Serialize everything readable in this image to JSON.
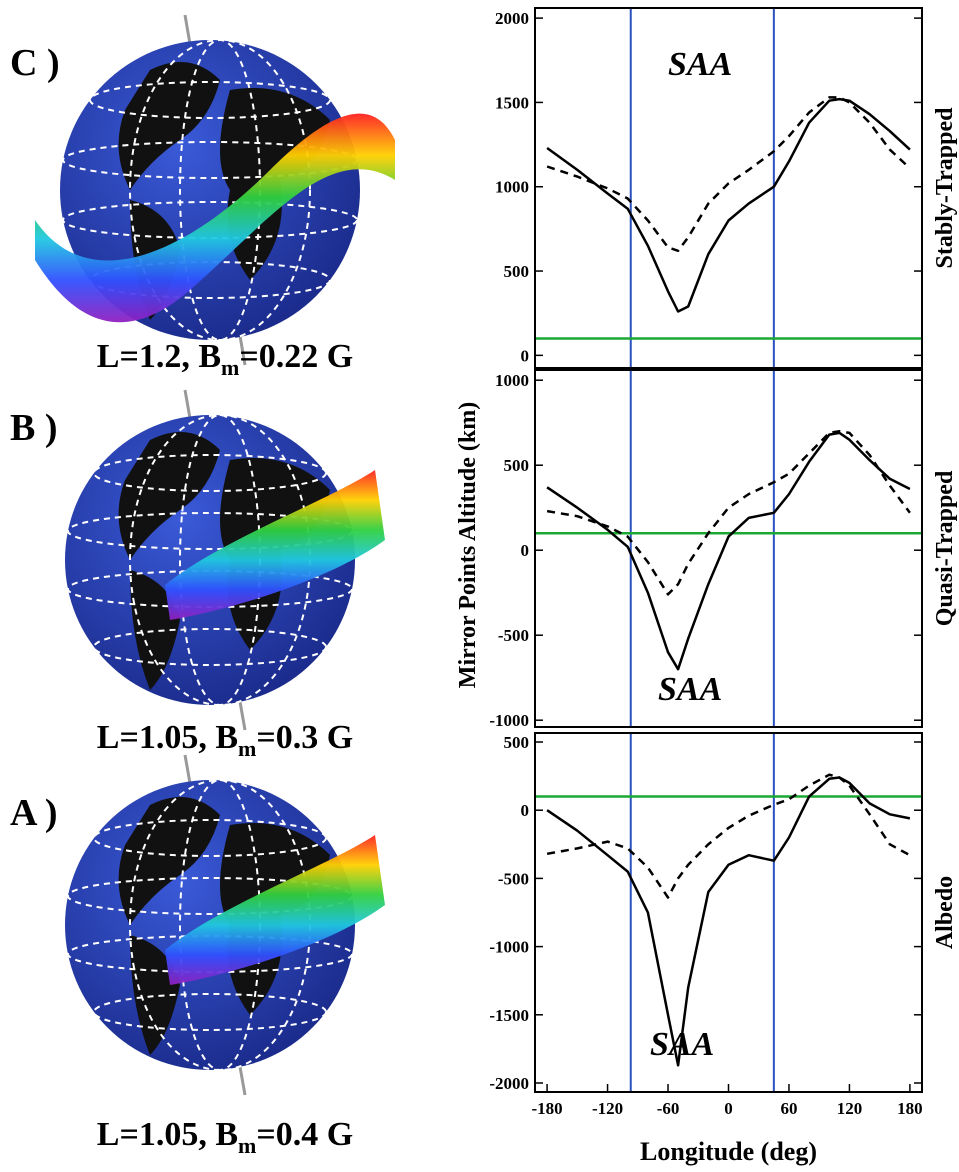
{
  "panels": [
    {
      "letter": "C )",
      "caption": {
        "prefix": "L=1.2, B",
        "sub": "m",
        "suffix": "=0.22 G"
      }
    },
    {
      "letter": "B )",
      "caption": {
        "prefix": "L=1.05, B",
        "sub": "m",
        "suffix": "=0.3 G"
      }
    },
    {
      "letter": "A )",
      "caption": {
        "prefix": "L=1.05, B",
        "sub": "m",
        "suffix": "=0.4 G"
      }
    }
  ],
  "ylabel": "Mirror Points Altitude (km)",
  "chart_data": [
    {
      "type": "line",
      "side_label": "Stably-Trapped",
      "annotation": "SAA",
      "x": [
        -180,
        -150,
        -120,
        -100,
        -80,
        -60,
        -50,
        -40,
        -20,
        0,
        20,
        45,
        60,
        80,
        100,
        110,
        120,
        140,
        160,
        180
      ],
      "series": [
        {
          "color": "#000000",
          "dash": false,
          "values": [
            1230,
            1100,
            960,
            870,
            650,
            380,
            260,
            290,
            600,
            800,
            900,
            1000,
            1150,
            1380,
            1510,
            1520,
            1510,
            1430,
            1330,
            1220
          ]
        },
        {
          "color": "#000000",
          "dash": true,
          "values": [
            1120,
            1060,
            990,
            930,
            800,
            640,
            620,
            700,
            900,
            1020,
            1100,
            1210,
            1300,
            1440,
            1530,
            1530,
            1500,
            1380,
            1220,
            1110
          ]
        }
      ],
      "xlim": [
        -192,
        192
      ],
      "ylim": [
        -75,
        2060
      ],
      "yticks": [
        0,
        500,
        1000,
        1500,
        2000
      ],
      "vlines": [
        -97,
        45
      ],
      "vline_color": "#2a52be",
      "hline": 100,
      "hline_color": "#1aa832"
    },
    {
      "type": "line",
      "side_label": "Quasi-Trapped",
      "annotation": "SAA",
      "x": [
        -180,
        -150,
        -120,
        -100,
        -80,
        -60,
        -50,
        -40,
        -20,
        0,
        20,
        45,
        60,
        80,
        100,
        110,
        120,
        140,
        160,
        180
      ],
      "series": [
        {
          "color": "#000000",
          "dash": false,
          "values": [
            370,
            250,
            120,
            20,
            -250,
            -600,
            -700,
            -520,
            -200,
            80,
            190,
            220,
            330,
            520,
            680,
            690,
            650,
            530,
            420,
            360
          ]
        },
        {
          "color": "#000000",
          "dash": true,
          "values": [
            230,
            200,
            140,
            80,
            -70,
            -260,
            -200,
            -80,
            100,
            250,
            330,
            400,
            450,
            570,
            690,
            700,
            690,
            560,
            380,
            220
          ]
        }
      ],
      "xlim": [
        -192,
        192
      ],
      "ylim": [
        -1040,
        1060
      ],
      "yticks": [
        -1000,
        -500,
        0,
        500,
        1000
      ],
      "vlines": [
        -97,
        45
      ],
      "vline_color": "#2a52be",
      "hline": 100,
      "hline_color": "#1aa832"
    },
    {
      "type": "line",
      "side_label": "Albedo",
      "annotation": "SAA",
      "xlabel": "Longitude (deg)",
      "x": [
        -180,
        -150,
        -120,
        -100,
        -80,
        -60,
        -50,
        -40,
        -20,
        0,
        20,
        45,
        60,
        80,
        100,
        110,
        120,
        140,
        160,
        180
      ],
      "series": [
        {
          "color": "#000000",
          "dash": false,
          "values": [
            0,
            -150,
            -330,
            -450,
            -750,
            -1500,
            -1870,
            -1300,
            -600,
            -400,
            -330,
            -370,
            -200,
            100,
            230,
            240,
            200,
            50,
            -30,
            -60
          ]
        },
        {
          "color": "#000000",
          "dash": true,
          "values": [
            -320,
            -280,
            -230,
            -280,
            -420,
            -640,
            -500,
            -400,
            -250,
            -130,
            -40,
            40,
            80,
            180,
            260,
            240,
            180,
            -30,
            -250,
            -330
          ]
        }
      ],
      "xlim": [
        -192,
        192
      ],
      "ylim": [
        -2066,
        566
      ],
      "yticks": [
        -2000,
        -1500,
        -1000,
        -500,
        0,
        500
      ],
      "xticks": [
        -180,
        -120,
        -60,
        0,
        60,
        120,
        180
      ],
      "vlines": [
        -97,
        45
      ],
      "vline_color": "#2a52be",
      "hline": 100,
      "hline_color": "#1aa832"
    }
  ]
}
